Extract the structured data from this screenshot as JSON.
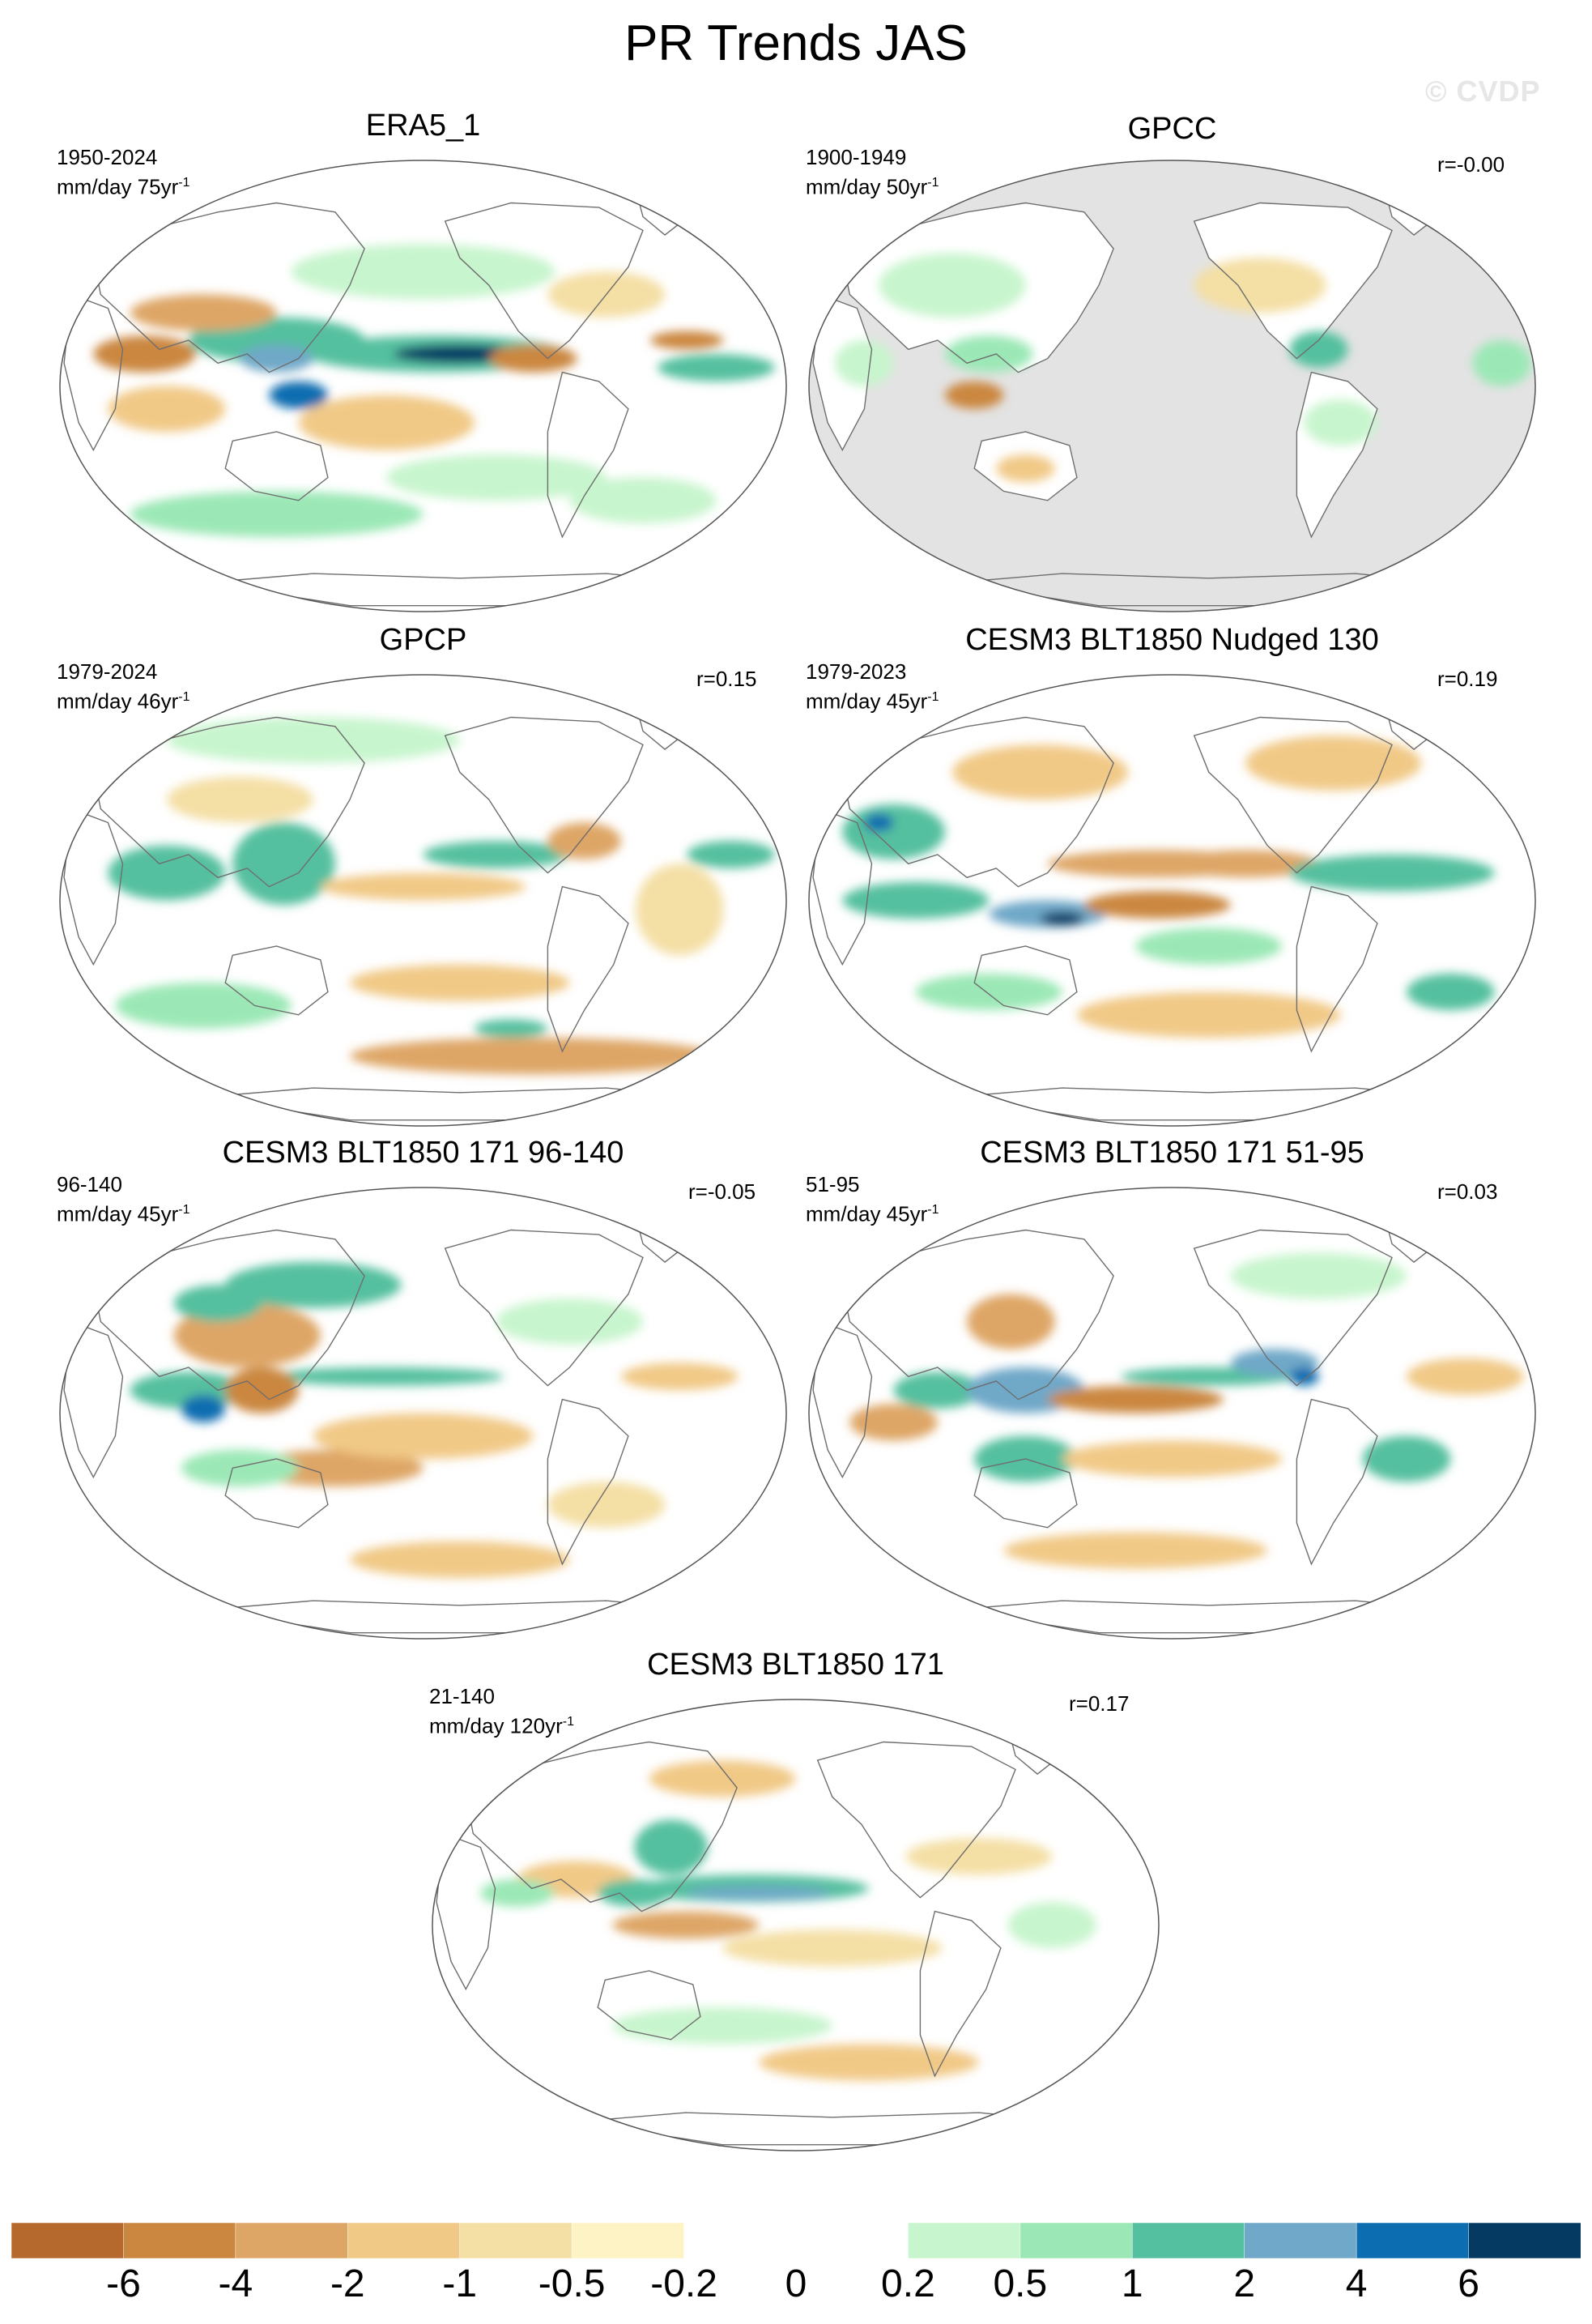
{
  "title": "PR Trends JAS",
  "watermark": "© CVDP",
  "panels": [
    {
      "id": "era5",
      "title": "ERA5_1",
      "period": "1950-2024",
      "units": "mm/day 75yr",
      "corr": "",
      "mask_ocean": false
    },
    {
      "id": "gpcc",
      "title": "GPCC",
      "period": "1900-1949",
      "units": "mm/day 50yr",
      "corr": "r=-0.00",
      "mask_ocean": true
    },
    {
      "id": "gpcp",
      "title": "GPCP",
      "period": "1979-2024",
      "units": "mm/day 46yr",
      "corr": "r=0.15",
      "mask_ocean": false
    },
    {
      "id": "nudged",
      "title": "CESM3 BLT1850 Nudged 130",
      "period": "1979-2023",
      "units": "mm/day 45yr",
      "corr": "r=0.19",
      "mask_ocean": false
    },
    {
      "id": "m96",
      "title": "CESM3 BLT1850 171 96-140",
      "period": "96-140",
      "units": "mm/day 45yr",
      "corr": "r=-0.05",
      "mask_ocean": false
    },
    {
      "id": "m51",
      "title": "CESM3 BLT1850 171 51-95",
      "period": "51-95",
      "units": "mm/day 45yr",
      "corr": "r=0.03",
      "mask_ocean": false
    },
    {
      "id": "m21",
      "title": "CESM3 BLT1850 171",
      "period": "21-140",
      "units": "mm/day 120yr",
      "corr": "r=0.17",
      "mask_ocean": false
    }
  ],
  "units_exponent": "-1",
  "colorbar": {
    "colors": [
      "#b5692c",
      "#cb873f",
      "#dea666",
      "#f1c987",
      "#f4dfa5",
      "#fdf3c4",
      "#ffffff",
      "#ffffff",
      "#c7f5cd",
      "#9be8b6",
      "#55c09f",
      "#6fa8c8",
      "#0c6db0",
      "#053b63"
    ],
    "labels": [
      "-6",
      "-4",
      "-2",
      "-1",
      "-0.5",
      "-0.2",
      "0",
      "0.2",
      "0.5",
      "1",
      "2",
      "4",
      "6"
    ]
  },
  "palette": {
    "brown_dark": "#b5692c",
    "brown": "#cb873f",
    "tan": "#dea666",
    "light_tan": "#f1c987",
    "pale": "#f4dfa5",
    "cream": "#fdf3c4",
    "pale_green": "#c7f5cd",
    "green": "#9be8b6",
    "teal": "#55c09f",
    "blue": "#6fa8c8",
    "dark_blue": "#0c6db0",
    "navy": "#053b63",
    "mask_gray": "#e3e3e3",
    "coast": "#6e6e6e"
  }
}
